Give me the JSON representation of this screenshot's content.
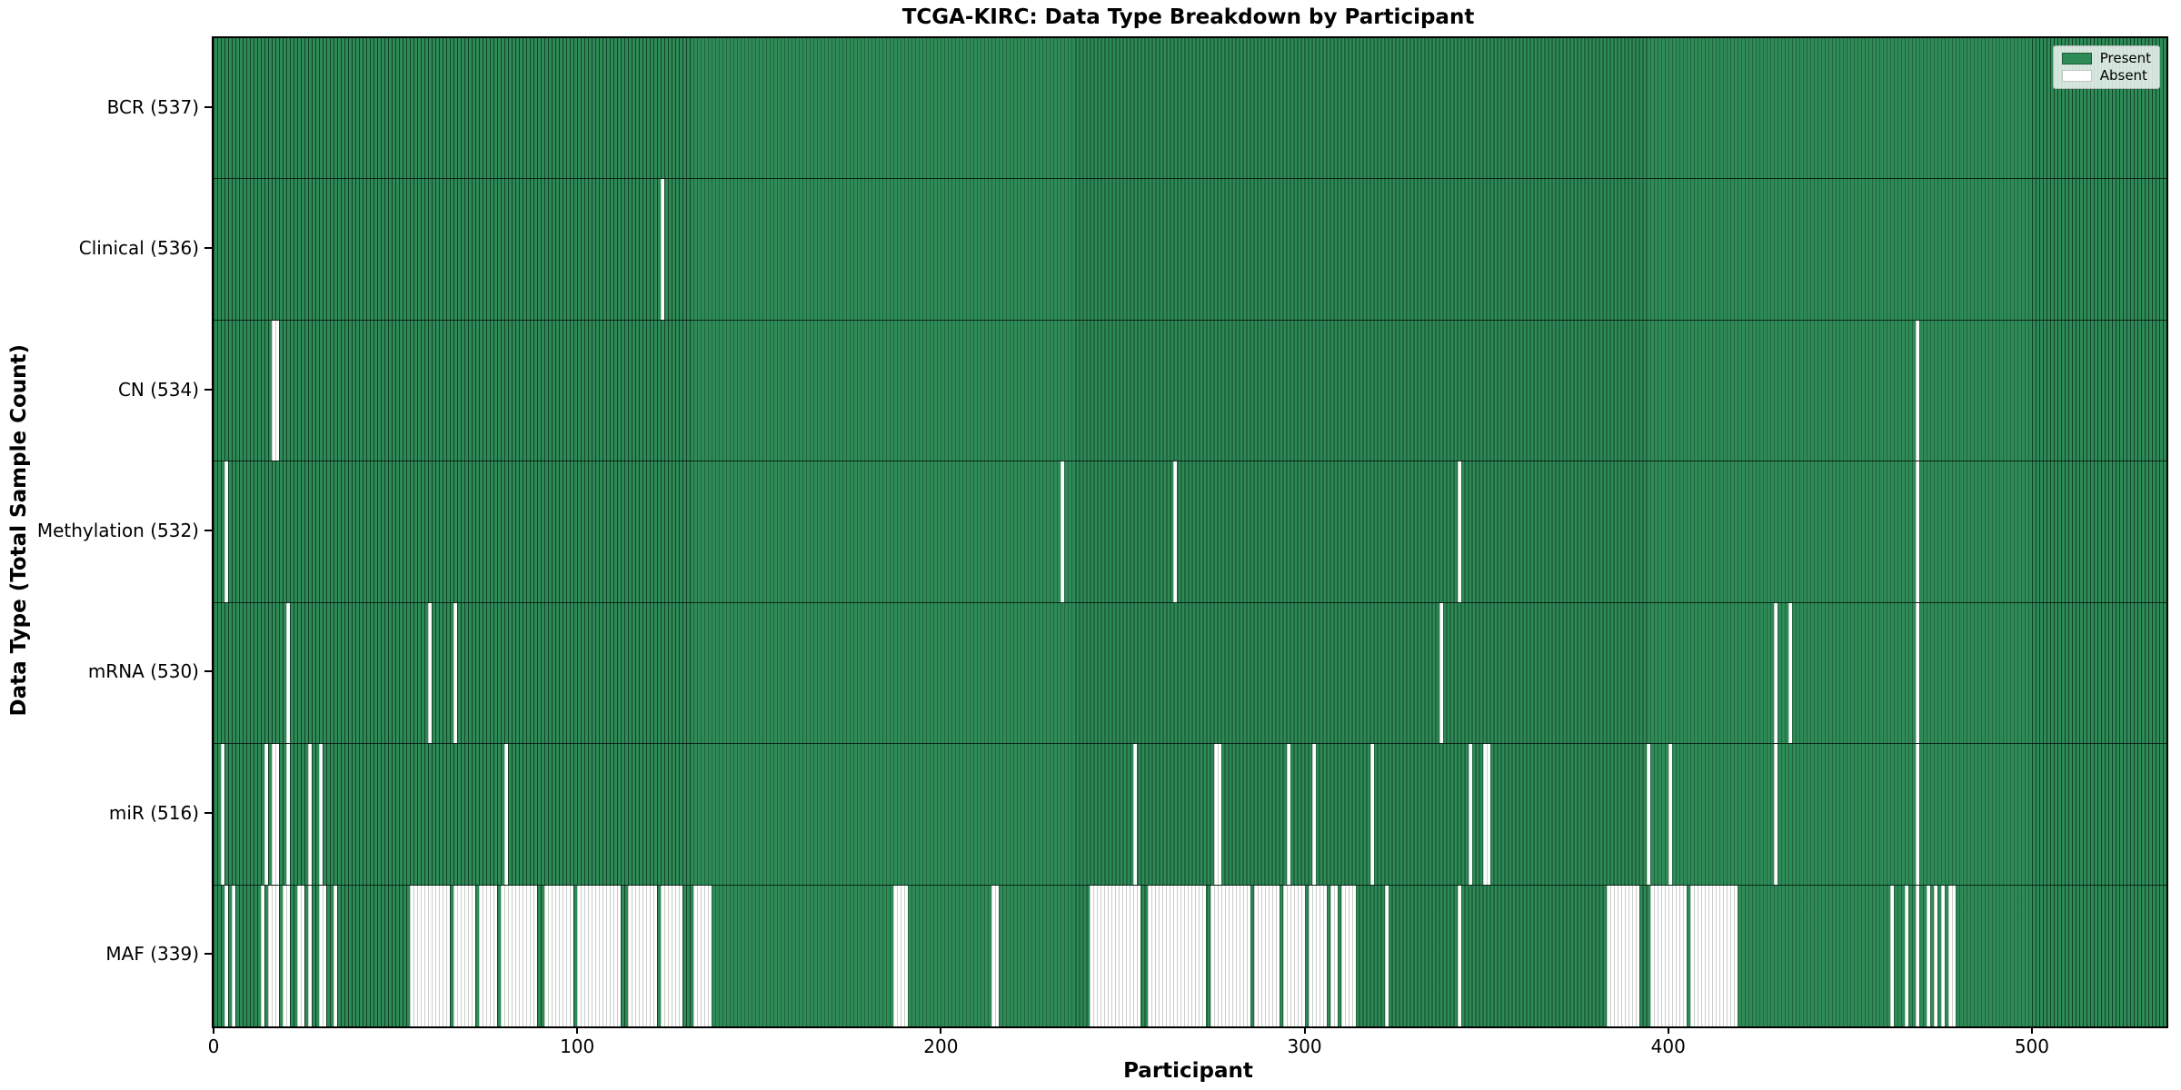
{
  "title": "TCGA-KIRC: Data Type Breakdown by Participant",
  "x_axis": {
    "label": "Participant",
    "ticks": [
      0,
      100,
      200,
      300,
      400,
      500
    ],
    "range": [
      -0.5,
      536.5
    ]
  },
  "y_axis": {
    "label": "Data Type (Total Sample Count)"
  },
  "legend": {
    "position": "upper right",
    "entries": [
      {
        "label": "Present",
        "swatch_color": "#2E8B57"
      },
      {
        "label": "Absent",
        "swatch_color": "#ffffff"
      }
    ]
  },
  "colors": {
    "present_fill": "#2E8B57",
    "bar_edge_on_green": "#1d5c39",
    "absent_fill": "#ffffff",
    "bar_edge_on_white": "#c9cec9",
    "plot_border": "#000000"
  },
  "chart_data": {
    "type": "heatmap",
    "title": "TCGA-KIRC: Data Type Breakdown by Participant",
    "xlabel": "Participant",
    "ylabel": "Data Type (Total Sample Count)",
    "n_participants": 537,
    "x_ticks": [
      0,
      100,
      200,
      300,
      400,
      500
    ],
    "legend_entries": [
      "Present",
      "Absent"
    ],
    "value_encoding": "green bar = data type present for participant, white gap = absent",
    "rows": [
      {
        "key": "bcr",
        "label": "BCR (537)",
        "data_type": "BCR",
        "total_samples": 537,
        "absent_count": 0,
        "absent_ranges": []
      },
      {
        "key": "clinical",
        "label": "Clinical (536)",
        "data_type": "Clinical",
        "total_samples": 536,
        "absent_count": 1,
        "absent_ranges": [
          [
            123,
            123
          ]
        ]
      },
      {
        "key": "cn",
        "label": "CN (534)",
        "data_type": "CN",
        "total_samples": 534,
        "absent_count": 3,
        "absent_ranges": [
          [
            16,
            17
          ],
          [
            468,
            468
          ]
        ]
      },
      {
        "key": "methylation",
        "label": "Methylation (532)",
        "data_type": "Methylation",
        "total_samples": 532,
        "absent_count": 5,
        "absent_ranges": [
          [
            3,
            3
          ],
          [
            233,
            233
          ],
          [
            264,
            264
          ],
          [
            342,
            342
          ],
          [
            468,
            468
          ]
        ]
      },
      {
        "key": "mrna",
        "label": "mRNA (530)",
        "data_type": "mRNA",
        "total_samples": 530,
        "absent_count": 7,
        "absent_ranges": [
          [
            20,
            20
          ],
          [
            59,
            59
          ],
          [
            66,
            66
          ],
          [
            337,
            337
          ],
          [
            429,
            429
          ],
          [
            433,
            433
          ],
          [
            468,
            468
          ]
        ]
      },
      {
        "key": "mir",
        "label": "miR (516)",
        "data_type": "miR",
        "total_samples": 516,
        "absent_count": 21,
        "absent_ranges": [
          [
            2,
            2
          ],
          [
            14,
            14
          ],
          [
            16,
            17
          ],
          [
            20,
            20
          ],
          [
            26,
            26
          ],
          [
            29,
            29
          ],
          [
            80,
            80
          ],
          [
            253,
            253
          ],
          [
            275,
            276
          ],
          [
            295,
            295
          ],
          [
            302,
            302
          ],
          [
            318,
            318
          ],
          [
            345,
            345
          ],
          [
            349,
            350
          ],
          [
            394,
            394
          ],
          [
            400,
            400
          ],
          [
            429,
            429
          ],
          [
            468,
            468
          ]
        ]
      },
      {
        "key": "maf",
        "label": "MAF (339)",
        "data_type": "MAF",
        "total_samples": 339,
        "absent_count": 198,
        "absent_ranges": [
          [
            3,
            3
          ],
          [
            5,
            5
          ],
          [
            13,
            13
          ],
          [
            15,
            17
          ],
          [
            19,
            20
          ],
          [
            23,
            24
          ],
          [
            26,
            26
          ],
          [
            29,
            30
          ],
          [
            33,
            33
          ],
          [
            54,
            64
          ],
          [
            66,
            71
          ],
          [
            73,
            77
          ],
          [
            79,
            88
          ],
          [
            91,
            98
          ],
          [
            100,
            111
          ],
          [
            114,
            121
          ],
          [
            123,
            128
          ],
          [
            132,
            136
          ],
          [
            187,
            190
          ],
          [
            214,
            215
          ],
          [
            241,
            254
          ],
          [
            257,
            272
          ],
          [
            274,
            284
          ],
          [
            286,
            292
          ],
          [
            294,
            299
          ],
          [
            301,
            305
          ],
          [
            307,
            308
          ],
          [
            310,
            313
          ],
          [
            322,
            322
          ],
          [
            342,
            342
          ],
          [
            383,
            391
          ],
          [
            395,
            404
          ],
          [
            406,
            418
          ],
          [
            461,
            461
          ],
          [
            465,
            465
          ],
          [
            468,
            468
          ],
          [
            471,
            471
          ],
          [
            473,
            473
          ],
          [
            475,
            475
          ],
          [
            477,
            478
          ]
        ]
      }
    ]
  }
}
